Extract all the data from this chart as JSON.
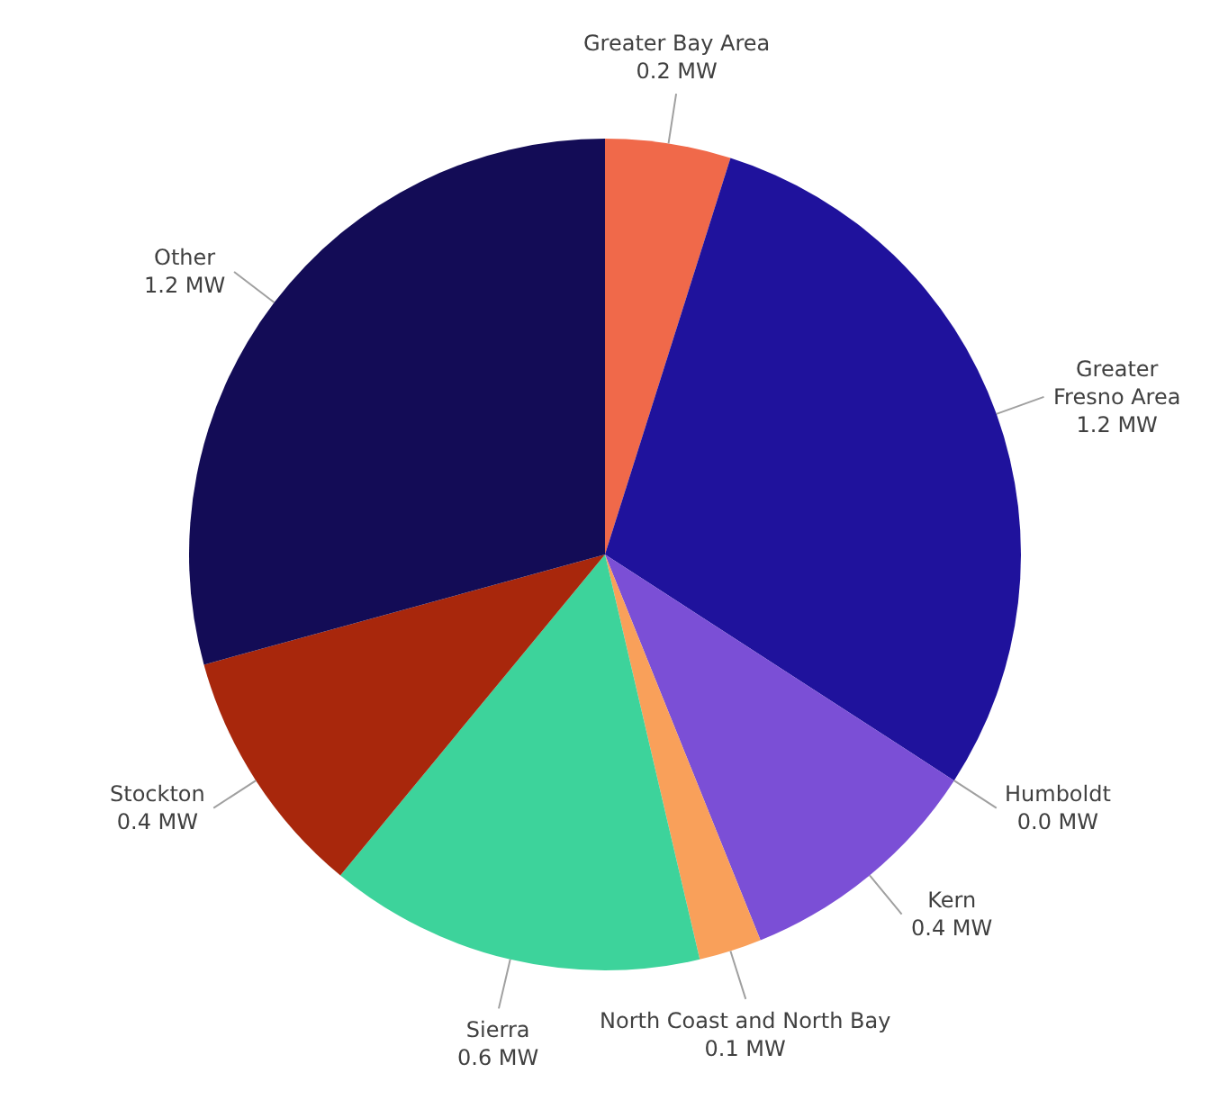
{
  "chart_data": {
    "type": "pie",
    "categories": [
      "Greater Bay Area",
      "Greater Fresno Area",
      "Humboldt",
      "Kern",
      "North Coast and North Bay",
      "Sierra",
      "Stockton",
      "Other"
    ],
    "values": [
      0.2,
      1.2,
      0.0,
      0.4,
      0.1,
      0.6,
      0.4,
      1.2
    ],
    "value_labels": [
      "0.2 MW",
      "1.2 MW",
      "0.0 MW",
      "0.4 MW",
      "0.1 MW",
      "0.6 MW",
      "0.4 MW",
      "1.2 MW"
    ],
    "colors": [
      "#f0694a",
      "#1f129c",
      "#000000",
      "#7b4fd6",
      "#f9a05a",
      "#3dd39b",
      "#a8270c",
      "#130c56"
    ]
  }
}
